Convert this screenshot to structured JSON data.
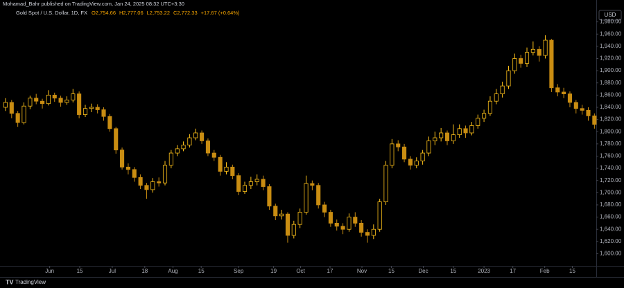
{
  "header": {
    "publisher": "Mohamad_Bahr published on TradingView.com, Jan 24, 2025 08:32 UTC+3:30",
    "symbol": "Gold Spot / U.S. Dollar, 1D, FX",
    "ohlc": [
      "O2,754.66",
      "H2,777.06",
      "L2,753.22",
      "C2,772.33"
    ],
    "change": "+17.67 (+0.64%)",
    "currency": "USD",
    "logo": "TradingView"
  },
  "chart_data": {
    "type": "candlestick",
    "up_color": "#ffc21a",
    "down_color": "#c98d12",
    "open": [
      1840,
      1848,
      1830,
      1815,
      1842,
      1855,
      1850,
      1846,
      1860,
      1855,
      1848,
      1852,
      1862,
      1828,
      1838,
      1840,
      1836,
      1825,
      1805,
      1770,
      1742,
      1738,
      1725,
      1712,
      1705,
      1718,
      1716,
      1745,
      1765,
      1772,
      1778,
      1790,
      1798,
      1785,
      1765,
      1758,
      1735,
      1742,
      1728,
      1702,
      1712,
      1718,
      1722,
      1710,
      1678,
      1662,
      1665,
      1630,
      1648,
      1668,
      1715,
      1712,
      1680,
      1668,
      1650,
      1645,
      1640,
      1660,
      1650,
      1635,
      1630,
      1640,
      1685,
      1745,
      1780,
      1775,
      1755,
      1745,
      1752,
      1765,
      1785,
      1790,
      1798,
      1785,
      1795,
      1805,
      1798,
      1810,
      1822,
      1830,
      1850,
      1862,
      1875,
      1900,
      1920,
      1912,
      1930,
      1935,
      1925,
      1950,
      1872,
      1865,
      1862,
      1848,
      1838,
      1835,
      1826
    ],
    "high": [
      1855,
      1852,
      1834,
      1848,
      1859,
      1862,
      1854,
      1868,
      1864,
      1859,
      1858,
      1870,
      1866,
      1844,
      1846,
      1845,
      1840,
      1829,
      1808,
      1774,
      1748,
      1742,
      1730,
      1716,
      1724,
      1725,
      1752,
      1770,
      1778,
      1784,
      1796,
      1805,
      1802,
      1789,
      1770,
      1762,
      1750,
      1746,
      1732,
      1718,
      1726,
      1730,
      1728,
      1714,
      1682,
      1672,
      1668,
      1654,
      1674,
      1728,
      1720,
      1716,
      1685,
      1672,
      1656,
      1650,
      1666,
      1668,
      1655,
      1640,
      1648,
      1690,
      1752,
      1788,
      1786,
      1780,
      1760,
      1758,
      1770,
      1792,
      1800,
      1806,
      1802,
      1812,
      1812,
      1810,
      1816,
      1828,
      1836,
      1858,
      1870,
      1882,
      1908,
      1928,
      1926,
      1938,
      1948,
      1940,
      1958,
      1952,
      1878,
      1872,
      1866,
      1852,
      1844,
      1840,
      1830
    ],
    "low": [
      1834,
      1822,
      1808,
      1812,
      1837,
      1845,
      1838,
      1843,
      1849,
      1841,
      1844,
      1848,
      1822,
      1824,
      1832,
      1830,
      1818,
      1800,
      1764,
      1738,
      1730,
      1718,
      1706,
      1690,
      1700,
      1710,
      1712,
      1740,
      1760,
      1768,
      1774,
      1786,
      1780,
      1760,
      1752,
      1728,
      1730,
      1722,
      1696,
      1698,
      1706,
      1712,
      1704,
      1672,
      1655,
      1656,
      1618,
      1625,
      1642,
      1664,
      1704,
      1674,
      1660,
      1644,
      1638,
      1632,
      1636,
      1644,
      1628,
      1618,
      1624,
      1636,
      1680,
      1740,
      1768,
      1750,
      1738,
      1740,
      1746,
      1760,
      1778,
      1784,
      1778,
      1780,
      1790,
      1790,
      1794,
      1805,
      1816,
      1826,
      1845,
      1856,
      1870,
      1895,
      1905,
      1906,
      1925,
      1915,
      1920,
      1865,
      1858,
      1855,
      1840,
      1830,
      1828,
      1818,
      1805
    ],
    "close": [
      1848,
      1830,
      1815,
      1842,
      1855,
      1850,
      1846,
      1860,
      1855,
      1848,
      1852,
      1862,
      1828,
      1838,
      1840,
      1836,
      1825,
      1805,
      1770,
      1742,
      1738,
      1725,
      1712,
      1705,
      1718,
      1716,
      1745,
      1765,
      1772,
      1778,
      1790,
      1798,
      1785,
      1765,
      1758,
      1735,
      1742,
      1728,
      1702,
      1712,
      1718,
      1722,
      1710,
      1678,
      1662,
      1665,
      1630,
      1648,
      1668,
      1715,
      1712,
      1680,
      1668,
      1650,
      1645,
      1640,
      1660,
      1650,
      1635,
      1630,
      1640,
      1685,
      1745,
      1780,
      1775,
      1755,
      1745,
      1752,
      1765,
      1785,
      1790,
      1798,
      1785,
      1795,
      1805,
      1798,
      1810,
      1822,
      1830,
      1850,
      1862,
      1875,
      1900,
      1920,
      1912,
      1930,
      1935,
      1925,
      1950,
      1872,
      1865,
      1862,
      1848,
      1838,
      1835,
      1826,
      1812
    ],
    "xlim": [
      -0.9,
      96.3
    ],
    "xticks": [
      {
        "value": 7.2,
        "label": "Jun"
      },
      {
        "value": 12.1,
        "label": "15"
      },
      {
        "value": 17.4,
        "label": "Jul"
      },
      {
        "value": 22.7,
        "label": "18"
      },
      {
        "value": 27.3,
        "label": "Aug"
      },
      {
        "value": 31.9,
        "label": "15"
      },
      {
        "value": 38.0,
        "label": "Sep"
      },
      {
        "value": 43.7,
        "label": "19"
      },
      {
        "value": 48.1,
        "label": "Oct"
      },
      {
        "value": 52.9,
        "label": "17"
      },
      {
        "value": 58.1,
        "label": "Nov"
      },
      {
        "value": 62.9,
        "label": "15"
      },
      {
        "value": 68.1,
        "label": "Dec"
      },
      {
        "value": 73.0,
        "label": "15"
      },
      {
        "value": 78.0,
        "label": "2023"
      },
      {
        "value": 82.7,
        "label": "17"
      },
      {
        "value": 87.9,
        "label": "Feb"
      },
      {
        "value": 92.4,
        "label": "15"
      }
    ],
    "ylim": [
      1571,
      2000
    ],
    "yticks": [
      {
        "value": 1600,
        "label": "1,600.00"
      },
      {
        "value": 1620,
        "label": "1,620.00"
      },
      {
        "value": 1640,
        "label": "1,640.00"
      },
      {
        "value": 1660,
        "label": "1,660.00"
      },
      {
        "value": 1680,
        "label": "1,680.00"
      },
      {
        "value": 1700,
        "label": "1,700.00"
      },
      {
        "value": 1720,
        "label": "1,720.00"
      },
      {
        "value": 1740,
        "label": "1,740.00"
      },
      {
        "value": 1760,
        "label": "1,760.00"
      },
      {
        "value": 1780,
        "label": "1,780.00"
      },
      {
        "value": 1800,
        "label": "1,800.00"
      },
      {
        "value": 1820,
        "label": "1,820.00"
      },
      {
        "value": 1840,
        "label": "1,840.00"
      },
      {
        "value": 1860,
        "label": "1,860.00"
      },
      {
        "value": 1880,
        "label": "1,880.00"
      },
      {
        "value": 1900,
        "label": "1,900.00"
      },
      {
        "value": 1920,
        "label": "1,920.00"
      },
      {
        "value": 1940,
        "label": "1,940.00"
      },
      {
        "value": 1960,
        "label": "1,960.00"
      },
      {
        "value": 1980,
        "label": "1,980.00"
      }
    ]
  }
}
